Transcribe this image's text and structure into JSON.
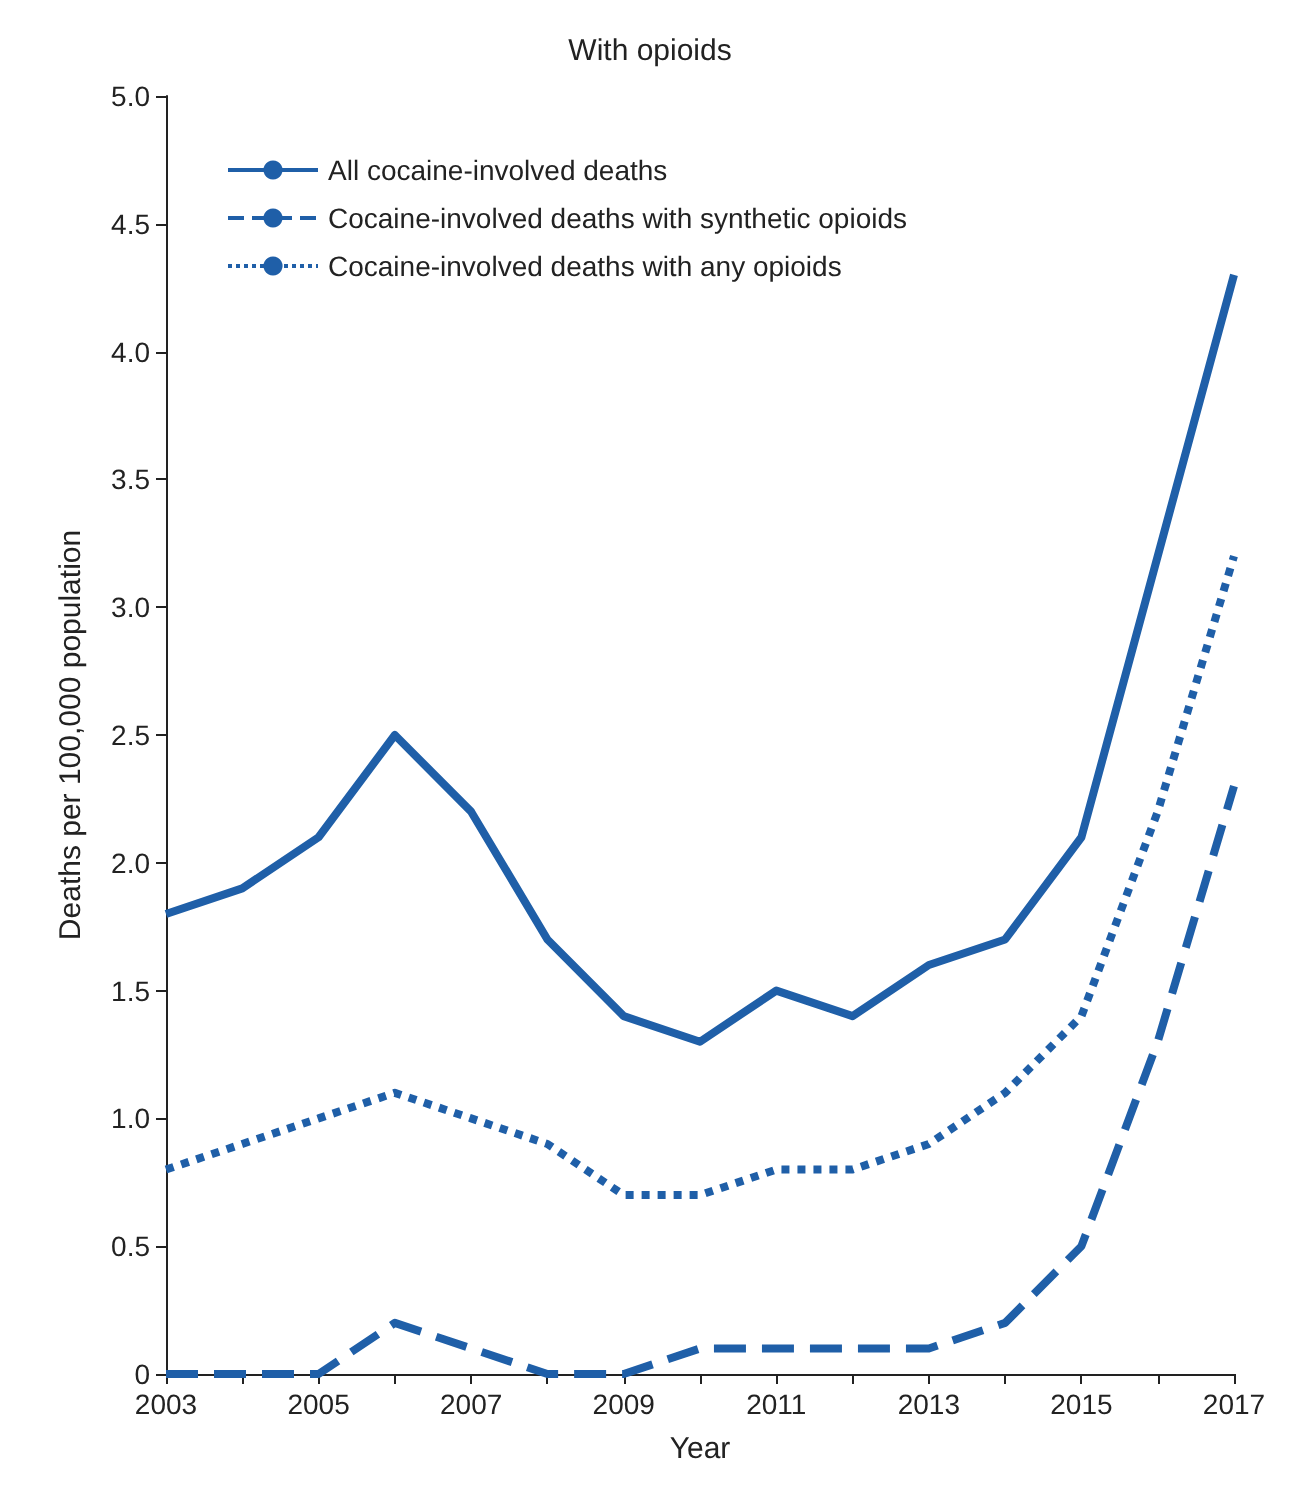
{
  "chart_data": {
    "type": "line",
    "title": "With opioids",
    "xlabel": "Year",
    "ylabel": "Deaths per 100,000 population",
    "x": [
      2003,
      2004,
      2005,
      2006,
      2007,
      2008,
      2009,
      2010,
      2011,
      2012,
      2013,
      2014,
      2015,
      2016,
      2017
    ],
    "series": [
      {
        "name": "All cocaine-involved deaths",
        "color": "#1f5fa8",
        "line_style": "solid",
        "values": [
          1.8,
          1.9,
          2.1,
          2.5,
          2.2,
          1.7,
          1.4,
          1.3,
          1.5,
          1.4,
          1.6,
          1.7,
          2.1,
          3.2,
          4.3
        ]
      },
      {
        "name": "Cocaine-involved deaths with synthetic opioids",
        "color": "#1f5fa8",
        "line_style": "dashed",
        "values": [
          0,
          0,
          0,
          0.2,
          0.1,
          0,
          0,
          0.1,
          0.1,
          0.1,
          0.1,
          0.2,
          0.5,
          1.3,
          2.3
        ]
      },
      {
        "name": "Cocaine-involved deaths with any opioids",
        "color": "#1f5fa8",
        "line_style": "dotted",
        "values": [
          0.8,
          0.9,
          1.0,
          1.1,
          1.0,
          0.9,
          0.7,
          0.7,
          0.8,
          0.8,
          0.9,
          1.1,
          1.4,
          2.2,
          3.2
        ]
      }
    ],
    "xlim": [
      2003,
      2017
    ],
    "xticks": [
      2003,
      {
        "value": 2004,
        "label": null
      },
      2005,
      {
        "value": 2006,
        "label": null
      },
      2007,
      {
        "value": 2008,
        "label": null
      },
      2009,
      {
        "value": 2010,
        "label": null
      },
      2011,
      {
        "value": 2012,
        "label": null
      },
      2013,
      {
        "value": 2014,
        "label": null
      },
      2015,
      {
        "value": 2016,
        "label": null
      },
      2017
    ],
    "ylim": [
      0,
      5
    ],
    "yticks": [
      0,
      0.5,
      {
        "value": 1,
        "label": "1.0"
      },
      1.5,
      {
        "value": 2,
        "label": "2.0"
      },
      2.5,
      {
        "value": 3,
        "label": "3.0"
      },
      3.5,
      {
        "value": 4,
        "label": "4.0"
      },
      4.5,
      {
        "value": 5,
        "label": "5.0"
      }
    ],
    "grid": false,
    "legend": "top left",
    "marker": "none"
  }
}
